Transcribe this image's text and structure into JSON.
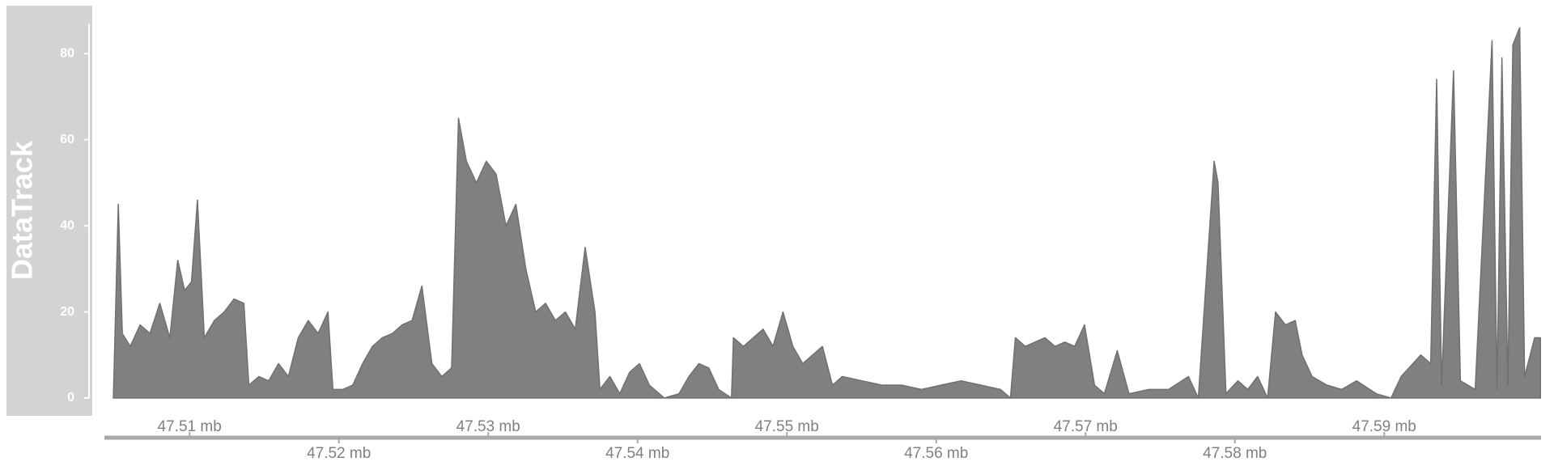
{
  "chart_data": {
    "type": "area",
    "track_name": "DataTrack",
    "color": "#808080",
    "x": [
      47.5049,
      47.50523,
      47.5055,
      47.50603,
      47.50669,
      47.50735,
      47.50801,
      47.50868,
      47.50921,
      47.50967,
      47.51013,
      47.51053,
      47.51099,
      47.51166,
      47.51232,
      47.51298,
      47.51364,
      47.51397,
      47.51464,
      47.5153,
      47.51596,
      47.51662,
      47.51728,
      47.51795,
      47.51861,
      47.51927,
      47.5196,
      47.52026,
      47.52093,
      47.52159,
      47.52225,
      47.52291,
      47.52358,
      47.52424,
      47.5249,
      47.52556,
      47.52623,
      47.52689,
      47.52755,
      47.52801,
      47.52854,
      47.52921,
      47.52987,
      47.53053,
      47.53119,
      47.53185,
      47.53252,
      47.53318,
      47.53384,
      47.5345,
      47.53517,
      47.53583,
      47.53649,
      47.53715,
      47.53748,
      47.53815,
      47.53881,
      47.53947,
      47.54013,
      47.54079,
      47.54179,
      47.54278,
      47.54344,
      47.54411,
      47.54477,
      47.54543,
      47.54629,
      47.54642,
      47.54709,
      47.54775,
      47.54841,
      47.54907,
      47.54974,
      47.5504,
      47.55106,
      47.55172,
      47.55238,
      47.55305,
      47.55371,
      47.55503,
      47.55636,
      47.55768,
      47.55901,
      47.56033,
      47.56166,
      47.56298,
      47.5643,
      47.56497,
      47.5653,
      47.56596,
      47.56662,
      47.56728,
      47.56795,
      47.56861,
      47.56927,
      47.56993,
      47.5706,
      47.57126,
      47.57212,
      47.57291,
      47.57424,
      47.57556,
      47.57689,
      47.57755,
      47.57861,
      47.57887,
      47.5794,
      47.5802,
      47.58086,
      47.58152,
      47.58219,
      47.58272,
      47.58338,
      47.58404,
      47.5845,
      47.58517,
      47.58616,
      47.58715,
      47.58815,
      47.58947,
      47.59046,
      47.59113,
      47.59245,
      47.59311,
      47.59351,
      47.59384,
      47.59464,
      47.5951,
      47.59609,
      47.59722,
      47.59755,
      47.59788,
      47.59828,
      47.59861,
      47.59907,
      47.5994,
      47.60007,
      47.60046
    ],
    "values": [
      0,
      45,
      15,
      12,
      17,
      15,
      22,
      14,
      32,
      25,
      27,
      46,
      14,
      18,
      20,
      23,
      22,
      3,
      5,
      4,
      8,
      5,
      14,
      18,
      15,
      20,
      2,
      2,
      3,
      8,
      12,
      14,
      15,
      17,
      18,
      26,
      8,
      5,
      7,
      65,
      55,
      50,
      55,
      52,
      40,
      45,
      30,
      20,
      22,
      18,
      20,
      16,
      35,
      20,
      2,
      5,
      1,
      6,
      8,
      3,
      0,
      1,
      5,
      8,
      7,
      2,
      0,
      14,
      12,
      14,
      16,
      12,
      20,
      12,
      8,
      10,
      12,
      3,
      5,
      4,
      3,
      3,
      2,
      3,
      4,
      3,
      2,
      0,
      14,
      12,
      13,
      14,
      12,
      13,
      12,
      17,
      3,
      1,
      11,
      1,
      2,
      2,
      5,
      0,
      55,
      50,
      1,
      4,
      2,
      5,
      0,
      20,
      17,
      18,
      10,
      5,
      3,
      2,
      4,
      1,
      0,
      5,
      10,
      8,
      74,
      3,
      76,
      4,
      2,
      83,
      2,
      79,
      3,
      82,
      86,
      5,
      14,
      14
    ],
    "xlim": [
      47.5043,
      47.6005
    ],
    "ylim": [
      0,
      87
    ],
    "yticks": [
      0,
      20,
      40,
      60,
      80
    ],
    "xticks": [
      {
        "value": 47.51,
        "label": "47.51 mb"
      },
      {
        "value": 47.52,
        "label": "47.52 mb"
      },
      {
        "value": 47.53,
        "label": "47.53 mb"
      },
      {
        "value": 47.54,
        "label": "47.54 mb"
      },
      {
        "value": 47.55,
        "label": "47.55 mb"
      },
      {
        "value": 47.56,
        "label": "47.56 mb"
      },
      {
        "value": 47.57,
        "label": "47.57 mb"
      },
      {
        "value": 47.58,
        "label": "47.58 mb"
      },
      {
        "value": 47.59,
        "label": "47.59 mb"
      }
    ]
  }
}
